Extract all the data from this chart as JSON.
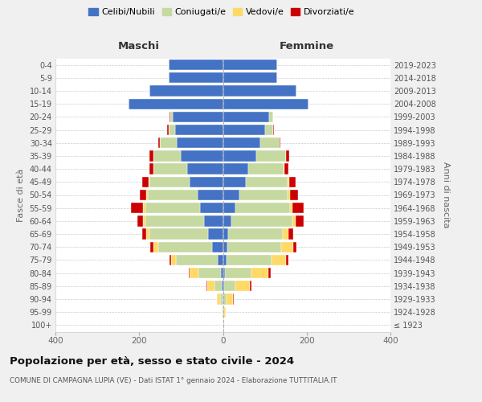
{
  "age_groups": [
    "100+",
    "95-99",
    "90-94",
    "85-89",
    "80-84",
    "75-79",
    "70-74",
    "65-69",
    "60-64",
    "55-59",
    "50-54",
    "45-49",
    "40-44",
    "35-39",
    "30-34",
    "25-29",
    "20-24",
    "15-19",
    "10-14",
    "5-9",
    "0-4"
  ],
  "birth_years": [
    "≤ 1923",
    "1924-1928",
    "1929-1933",
    "1934-1938",
    "1939-1943",
    "1944-1948",
    "1949-1953",
    "1954-1958",
    "1959-1963",
    "1964-1968",
    "1969-1973",
    "1974-1978",
    "1979-1983",
    "1984-1988",
    "1989-1993",
    "1994-1998",
    "1999-2003",
    "2004-2008",
    "2009-2013",
    "2014-2018",
    "2019-2023"
  ],
  "colors": {
    "celibi": "#4472C4",
    "coniugati": "#C5D9A0",
    "vedovi": "#FFD966",
    "divorziati": "#CC0000"
  },
  "maschi": {
    "celibi": [
      0,
      0,
      1,
      2,
      4,
      13,
      25,
      35,
      45,
      55,
      60,
      80,
      85,
      100,
      110,
      115,
      120,
      225,
      175,
      130,
      130
    ],
    "coniugati": [
      0,
      1,
      5,
      18,
      55,
      100,
      130,
      140,
      140,
      130,
      120,
      95,
      80,
      65,
      40,
      15,
      5,
      0,
      0,
      0,
      0
    ],
    "vedovi": [
      0,
      2,
      8,
      18,
      20,
      10,
      10,
      8,
      5,
      5,
      3,
      2,
      1,
      1,
      0,
      0,
      0,
      0,
      0,
      0,
      0
    ],
    "divorziati": [
      0,
      0,
      0,
      2,
      3,
      5,
      8,
      10,
      15,
      30,
      15,
      15,
      10,
      10,
      5,
      3,
      2,
      0,
      0,
      0,
      0
    ]
  },
  "femmine": {
    "celibi": [
      0,
      0,
      1,
      2,
      4,
      8,
      10,
      12,
      20,
      30,
      40,
      55,
      60,
      80,
      90,
      100,
      110,
      205,
      175,
      130,
      130
    ],
    "coniugati": [
      0,
      2,
      8,
      28,
      65,
      108,
      130,
      130,
      145,
      130,
      115,
      100,
      85,
      70,
      45,
      20,
      10,
      0,
      0,
      0,
      0
    ],
    "vedovi": [
      2,
      5,
      15,
      35,
      40,
      35,
      28,
      15,
      8,
      5,
      5,
      3,
      2,
      1,
      0,
      0,
      0,
      0,
      0,
      0,
      0
    ],
    "divorziati": [
      0,
      0,
      2,
      3,
      5,
      5,
      8,
      10,
      20,
      28,
      20,
      15,
      10,
      8,
      3,
      2,
      0,
      0,
      0,
      0,
      0
    ]
  },
  "xlim": 400,
  "title": "Popolazione per età, sesso e stato civile - 2024",
  "subtitle": "COMUNE DI CAMPAGNA LUPIA (VE) - Dati ISTAT 1° gennaio 2024 - Elaborazione TUTTITALIA.IT",
  "ylabel": "Fasce di età",
  "ylabel_right": "Anni di nascita",
  "xlabel_left": "Maschi",
  "xlabel_right": "Femmine",
  "legend_labels": [
    "Celibi/Nubili",
    "Coniugati/e",
    "Vedovi/e",
    "Divorziati/e"
  ],
  "bg_color": "#f0f0f0",
  "plot_bg": "#ffffff"
}
